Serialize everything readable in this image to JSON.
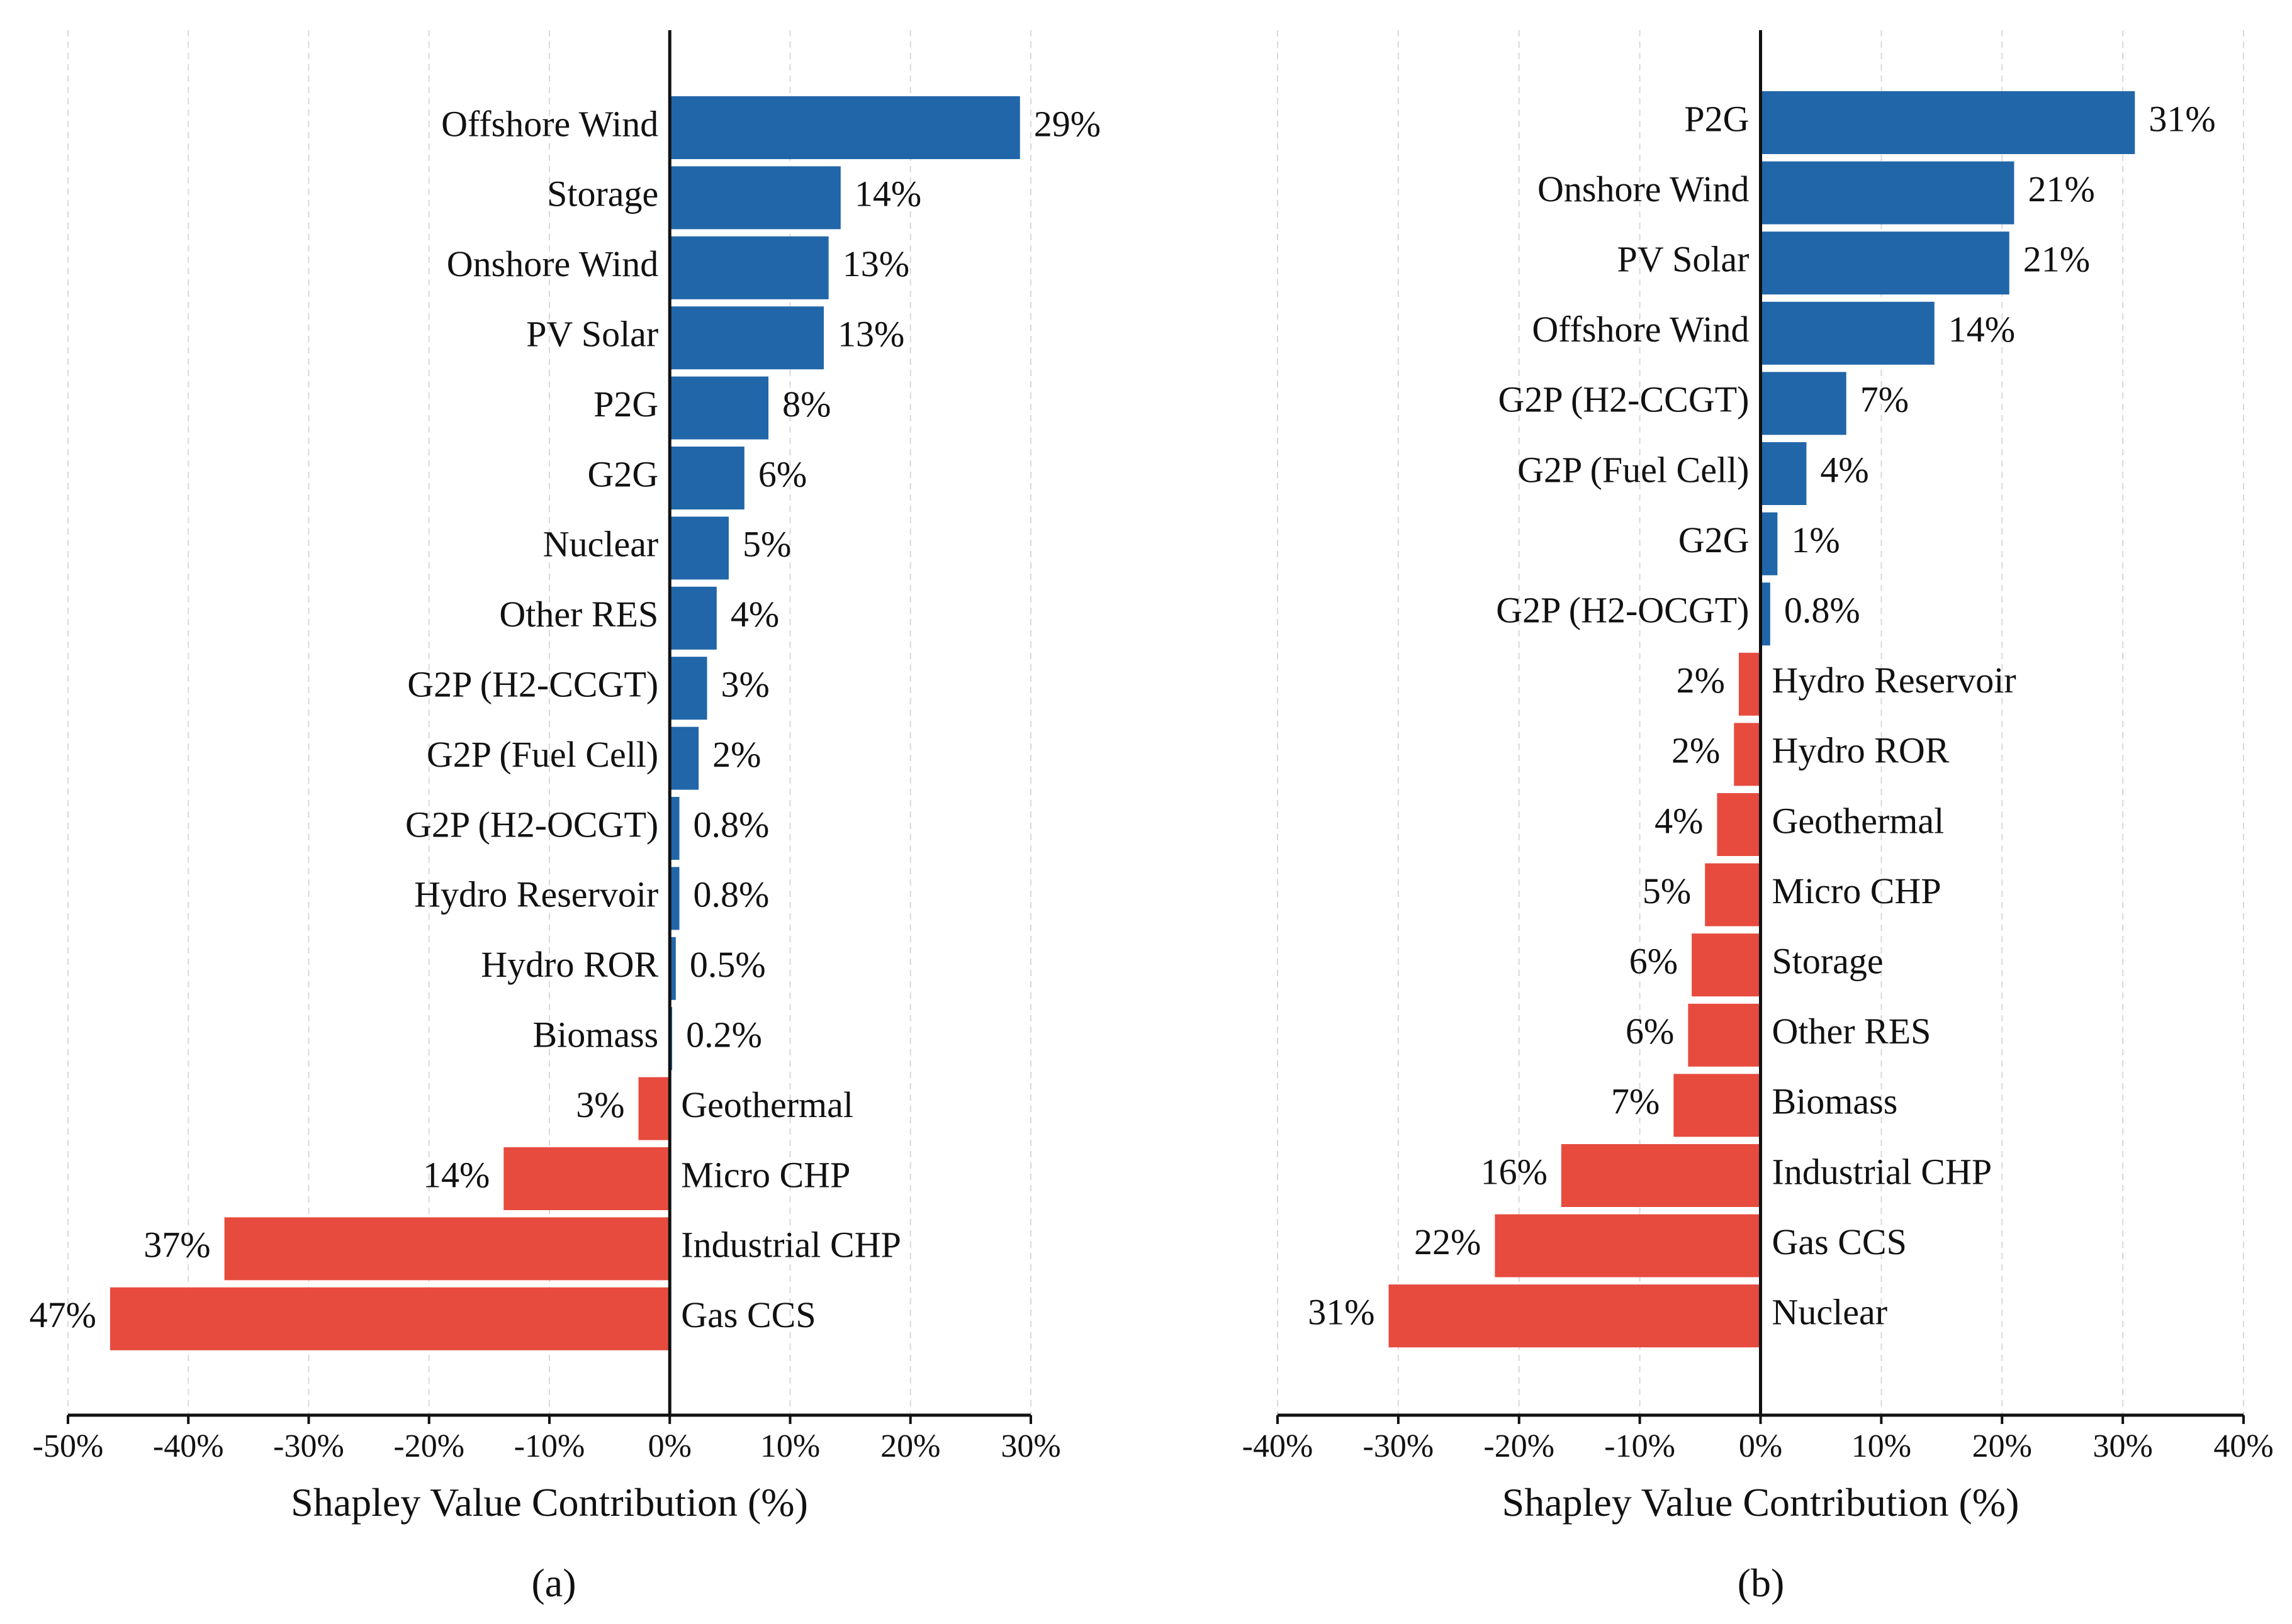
{
  "chart_data": [
    {
      "type": "bar",
      "orientation": "horizontal",
      "panel_label": "(a)",
      "xlabel": "Shapley Value Contribution (%)",
      "ylabel": "",
      "xlim": [
        -50,
        30
      ],
      "xticks": [
        "-50%",
        "-40%",
        "-30%",
        "-20%",
        "-10%",
        "0%",
        "10%",
        "20%",
        "30%"
      ],
      "grid": "x-dashed",
      "colors": {
        "positive": "#2166a8",
        "negative": "#e64b3e"
      },
      "categories": [
        "Offshore Wind",
        "Storage",
        "Onshore Wind",
        "PV Solar",
        "P2G",
        "G2G",
        "Nuclear",
        "Other RES",
        "G2P (H2-CCGT)",
        "G2P (Fuel Cell)",
        "G2P (H2-OCGT)",
        "Hydro Reservoir",
        "Hydro ROR",
        "Biomass",
        "Geothermal",
        "Micro CHP",
        "Industrial CHP",
        "Gas CCS"
      ],
      "values": [
        29.1,
        14.2,
        13.2,
        12.8,
        8.2,
        6.2,
        4.9,
        3.9,
        3.1,
        2.4,
        0.8,
        0.8,
        0.5,
        0.2,
        -2.6,
        -13.8,
        -37.0,
        -46.5
      ],
      "labels": [
        "29%",
        "14%",
        "13%",
        "13%",
        "8%",
        "6%",
        "5%",
        "4%",
        "3%",
        "2%",
        "0.8%",
        "0.8%",
        "0.5%",
        "0.2%",
        "3%",
        "14%",
        "37%",
        "47%"
      ]
    },
    {
      "type": "bar",
      "orientation": "horizontal",
      "panel_label": "(b)",
      "xlabel": "Shapley Value Contribution (%)",
      "ylabel": "",
      "xlim": [
        -40,
        40
      ],
      "xticks": [
        "-40%",
        "-30%",
        "-20%",
        "-10%",
        "0%",
        "10%",
        "20%",
        "30%",
        "40%"
      ],
      "grid": "x-dashed",
      "colors": {
        "positive": "#2166a8",
        "negative": "#e64b3e"
      },
      "categories": [
        "P2G",
        "Onshore Wind",
        "PV Solar",
        "Offshore Wind",
        "G2P (H2-CCGT)",
        "G2P (Fuel Cell)",
        "G2G",
        "G2P (H2-OCGT)",
        "Hydro Reservoir",
        "Hydro ROR",
        "Geothermal",
        "Micro CHP",
        "Storage",
        "Other RES",
        "Biomass",
        "Industrial CHP",
        "Gas CCS",
        "Nuclear"
      ],
      "values": [
        31.0,
        21.0,
        20.6,
        14.4,
        7.1,
        3.8,
        1.4,
        0.8,
        -1.8,
        -2.2,
        -3.6,
        -4.6,
        -5.7,
        -6.0,
        -7.2,
        -16.5,
        -22.0,
        -30.8
      ],
      "labels": [
        "31%",
        "21%",
        "21%",
        "14%",
        "7%",
        "4%",
        "1%",
        "0.8%",
        "2%",
        "2%",
        "4%",
        "5%",
        "6%",
        "6%",
        "7%",
        "16%",
        "22%",
        "31%"
      ]
    }
  ]
}
